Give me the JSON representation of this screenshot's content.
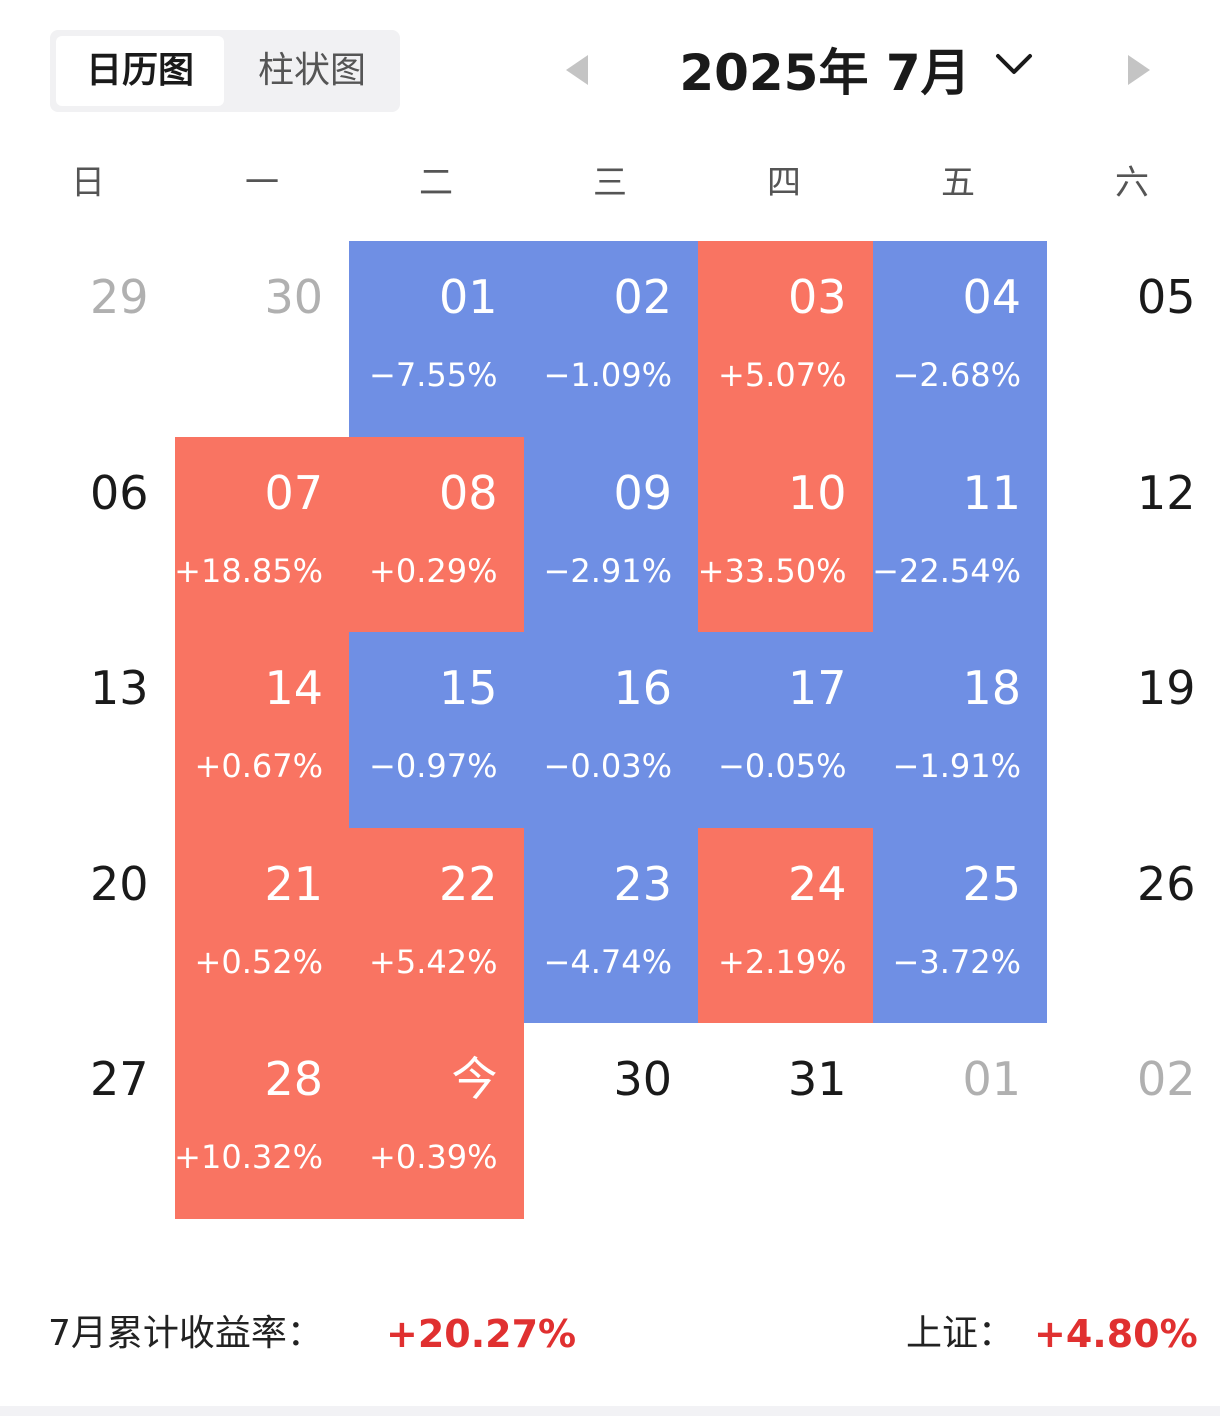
{
  "tabs": [
    {
      "label": "日历图",
      "active": true
    },
    {
      "label": "柱状图",
      "active": false
    }
  ],
  "header": {
    "month_title": "2025年 7月",
    "prev_icon": "triangle-left-icon",
    "next_icon": "triangle-right-icon",
    "dropdown_icon": "chevron-down-icon"
  },
  "weekdays": [
    "日",
    "一",
    "二",
    "三",
    "四",
    "五",
    "六"
  ],
  "colors": {
    "up": "#f97462",
    "down": "#6f8fe4",
    "summary_value": "#e03030"
  },
  "days": [
    {
      "label": "29",
      "status": "outside"
    },
    {
      "label": "30",
      "status": "outside"
    },
    {
      "label": "01",
      "pct": "−7.55%",
      "status": "down"
    },
    {
      "label": "02",
      "pct": "−1.09%",
      "status": "down"
    },
    {
      "label": "03",
      "pct": "+5.07%",
      "status": "up"
    },
    {
      "label": "04",
      "pct": "−2.68%",
      "status": "down"
    },
    {
      "label": "05",
      "status": "plain"
    },
    {
      "label": "06",
      "status": "plain"
    },
    {
      "label": "07",
      "pct": "+18.85%",
      "status": "up"
    },
    {
      "label": "08",
      "pct": "+0.29%",
      "status": "up"
    },
    {
      "label": "09",
      "pct": "−2.91%",
      "status": "down"
    },
    {
      "label": "10",
      "pct": "+33.50%",
      "status": "up"
    },
    {
      "label": "11",
      "pct": "−22.54%",
      "status": "down"
    },
    {
      "label": "12",
      "status": "plain"
    },
    {
      "label": "13",
      "status": "plain"
    },
    {
      "label": "14",
      "pct": "+0.67%",
      "status": "up"
    },
    {
      "label": "15",
      "pct": "−0.97%",
      "status": "down"
    },
    {
      "label": "16",
      "pct": "−0.03%",
      "status": "down"
    },
    {
      "label": "17",
      "pct": "−0.05%",
      "status": "down"
    },
    {
      "label": "18",
      "pct": "−1.91%",
      "status": "down"
    },
    {
      "label": "19",
      "status": "plain"
    },
    {
      "label": "20",
      "status": "plain"
    },
    {
      "label": "21",
      "pct": "+0.52%",
      "status": "up"
    },
    {
      "label": "22",
      "pct": "+5.42%",
      "status": "up"
    },
    {
      "label": "23",
      "pct": "−4.74%",
      "status": "down"
    },
    {
      "label": "24",
      "pct": "+2.19%",
      "status": "up"
    },
    {
      "label": "25",
      "pct": "−3.72%",
      "status": "down"
    },
    {
      "label": "26",
      "status": "plain"
    },
    {
      "label": "27",
      "status": "plain"
    },
    {
      "label": "28",
      "pct": "+10.32%",
      "status": "up"
    },
    {
      "label": "今",
      "pct": "+0.39%",
      "status": "up"
    },
    {
      "label": "30",
      "status": "plain"
    },
    {
      "label": "31",
      "status": "plain"
    },
    {
      "label": "01",
      "status": "outside"
    },
    {
      "label": "02",
      "status": "outside"
    }
  ],
  "summary": {
    "label": "7月累计收益率：",
    "value": "+20.27%",
    "index_label": "上证：",
    "index_value": "+4.80%"
  }
}
